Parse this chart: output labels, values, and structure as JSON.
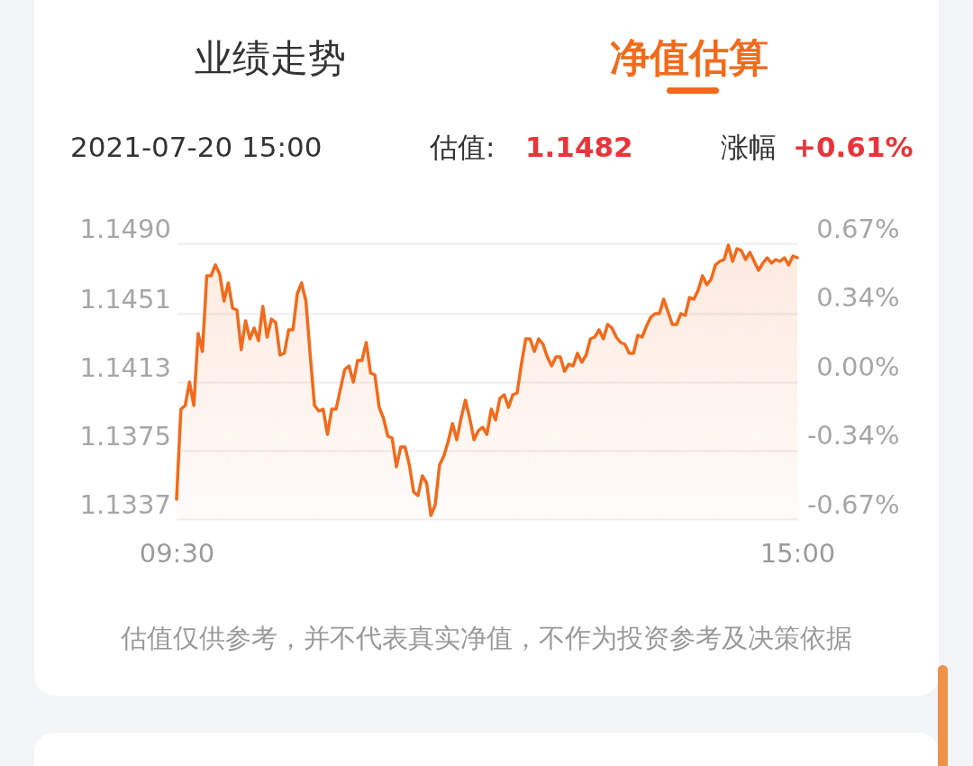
{
  "chart_data": {
    "type": "area",
    "color": "#f26a1b",
    "categories": [
      "09:30",
      null,
      null,
      null,
      null,
      null,
      null,
      null,
      null,
      null,
      null,
      null,
      null,
      null,
      null,
      null,
      null,
      null,
      null,
      null,
      null,
      null,
      null,
      null,
      null,
      null,
      null,
      null,
      null,
      null,
      null,
      null,
      null,
      null,
      null,
      null,
      null,
      null,
      null,
      null,
      null,
      null,
      null,
      null,
      null,
      null,
      null,
      null,
      null,
      null,
      null,
      null,
      null,
      null,
      null,
      null,
      null,
      null,
      null,
      null,
      null,
      null,
      null,
      null,
      null,
      null,
      null,
      null,
      null,
      null,
      null,
      null,
      null,
      null,
      null,
      null,
      null,
      null,
      null,
      null,
      null,
      null,
      null,
      null,
      null,
      null,
      null,
      null,
      null,
      null,
      null,
      null,
      null,
      null,
      null,
      null,
      null,
      null,
      null,
      null,
      null,
      null,
      null,
      null,
      null,
      null,
      null,
      null,
      null,
      null,
      null,
      null,
      null,
      null,
      null,
      null,
      null,
      null,
      null,
      null,
      null,
      null,
      null,
      null,
      null,
      null,
      null,
      null,
      null,
      null,
      null,
      null,
      null,
      null,
      null,
      null,
      null,
      null,
      null,
      null,
      null,
      null,
      null,
      null,
      "15:00"
    ],
    "values": [
      1.1348,
      1.1398,
      1.14,
      1.1413,
      1.14,
      1.144,
      1.143,
      1.1472,
      1.1472,
      1.1478,
      1.1473,
      1.1458,
      1.1468,
      1.1454,
      1.1453,
      1.1431,
      1.1447,
      1.1437,
      1.1443,
      1.1436,
      1.1455,
      1.1438,
      1.1448,
      1.1446,
      1.1428,
      1.1429,
      1.1442,
      1.1442,
      1.1462,
      1.1468,
      1.1458,
      1.1428,
      1.14,
      1.1397,
      1.1398,
      1.1384,
      1.1398,
      1.1398,
      1.1409,
      1.142,
      1.1422,
      1.1413,
      1.1425,
      1.1425,
      1.1435,
      1.1418,
      1.1417,
      1.1399,
      1.1393,
      1.1383,
      1.1382,
      1.1366,
      1.1377,
      1.1377,
      1.1367,
      1.1352,
      1.135,
      1.1361,
      1.1357,
      1.1339,
      1.1345,
      1.1367,
      1.1372,
      1.138,
      1.139,
      1.1381,
      1.1393,
      1.1403,
      1.1393,
      1.1381,
      1.1386,
      1.1388,
      1.1384,
      1.1398,
      1.1392,
      1.1404,
      1.1406,
      1.1399,
      1.1406,
      1.1407,
      1.1423,
      1.1437,
      1.1437,
      1.143,
      1.1437,
      1.1434,
      1.1427,
      1.1422,
      1.1427,
      1.1427,
      1.1419,
      1.1423,
      1.1422,
      1.1429,
      1.1424,
      1.1428,
      1.1437,
      1.1438,
      1.1442,
      1.1437,
      1.1445,
      1.1443,
      1.1438,
      1.1435,
      1.1434,
      1.1429,
      1.1429,
      1.1439,
      1.1438,
      1.1444,
      1.1449,
      1.1451,
      1.1451,
      1.1459,
      1.1452,
      1.1445,
      1.1445,
      1.1451,
      1.145,
      1.146,
      1.1459,
      1.1464,
      1.1472,
      1.1467,
      1.147,
      1.1478,
      1.148,
      1.1481,
      1.1489,
      1.148,
      1.1487,
      1.1486,
      1.1481,
      1.1485,
      1.148,
      1.1475,
      1.1479,
      1.1482,
      1.1479,
      1.1481,
      1.148,
      1.1482,
      1.1478,
      1.1483,
      1.1482
    ],
    "ylim": [
      1.1337,
      1.149
    ],
    "yticks": [
      1.1337,
      1.1375,
      1.1413,
      1.1451,
      {
        "value": 1.149,
        "label": "1.1490"
      }
    ],
    "y2lim": [
      -0.67,
      0.67
    ],
    "y2ticks": [
      {
        "value": -0.67,
        "label": "-0.67%"
      },
      {
        "value": -0.335,
        "label": "-0.34%"
      },
      {
        "value": 0,
        "label": "0.00%"
      },
      {
        "value": 0.335,
        "label": "0.34%"
      },
      {
        "value": 0.67,
        "label": "0.67%"
      }
    ],
    "grid": "y",
    "annotations": [
      "业绩走势",
      "净值估算",
      "2021-07-20 15:00",
      "估值:",
      "1.1482",
      "涨幅",
      "+0.61%",
      "估值仅供参考，并不代表真实净值，不作为投资参考及决策依据"
    ]
  }
}
